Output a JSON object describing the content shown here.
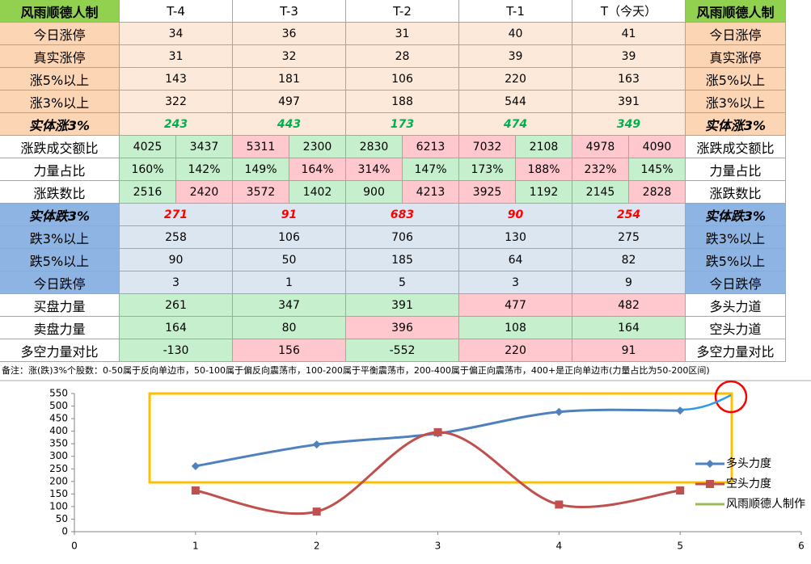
{
  "table": {
    "header": [
      "风雨顺德人制",
      "T-4",
      "T-3",
      "T-2",
      "T-1",
      "T（今天）",
      "风雨顺德人制"
    ],
    "header_fill": "#92d050",
    "rows": [
      {
        "label": "今日涨停",
        "right": "今日涨停",
        "label_fill": "#fcd5b4",
        "fill": "#fde9d9",
        "values": [
          34,
          36,
          31,
          40,
          41
        ]
      },
      {
        "label": "真实涨停",
        "right": "真实涨停",
        "label_fill": "#fcd5b4",
        "fill": "#fde9d9",
        "values": [
          31,
          32,
          28,
          39,
          39
        ]
      },
      {
        "label": "涨5%以上",
        "right": "涨5%以上",
        "label_fill": "#fcd5b4",
        "fill": "#fde9d9",
        "values": [
          143,
          181,
          106,
          220,
          163
        ]
      },
      {
        "label": "涨3%以上",
        "right": "涨3%以上",
        "label_fill": "#fcd5b4",
        "fill": "#fde9d9",
        "values": [
          322,
          497,
          188,
          544,
          391
        ]
      },
      {
        "label": "实体涨3%",
        "right": "实体涨3%",
        "label_fill": "#fcd5b4",
        "fill": "#fde9d9",
        "emphasis": true,
        "color": "#00b050",
        "values": [
          243,
          443,
          173,
          474,
          349
        ]
      },
      {
        "label": "涨跌成交额比",
        "right": "涨跌成交额比",
        "label_fill": "#ffffff",
        "values": [
          [
            4025,
            3437
          ],
          [
            5311,
            2300
          ],
          [
            2830,
            6213
          ],
          [
            7032,
            2108
          ],
          [
            4978,
            4090
          ]
        ],
        "fills": [
          [
            "#c6efce",
            "#c6efce"
          ],
          [
            "#ffc7ce",
            "#c6efce"
          ],
          [
            "#c6efce",
            "#ffc7ce"
          ],
          [
            "#ffc7ce",
            "#c6efce"
          ],
          [
            "#ffc7ce",
            "#ffc7ce"
          ]
        ]
      },
      {
        "label": "力量占比",
        "right": "力量占比",
        "label_fill": "#ffffff",
        "values": [
          [
            "160%",
            "142%"
          ],
          [
            "149%",
            "164%"
          ],
          [
            "314%",
            "147%"
          ],
          [
            "173%",
            "188%"
          ],
          [
            "232%",
            "145%"
          ]
        ],
        "fills": [
          [
            "#c6efce",
            "#c6efce"
          ],
          [
            "#c6efce",
            "#ffc7ce"
          ],
          [
            "#ffc7ce",
            "#c6efce"
          ],
          [
            "#c6efce",
            "#ffc7ce"
          ],
          [
            "#ffc7ce",
            "#c6efce"
          ]
        ]
      },
      {
        "label": "涨跌数比",
        "right": "涨跌数比",
        "label_fill": "#ffffff",
        "values": [
          [
            2516,
            2420
          ],
          [
            3572,
            1402
          ],
          [
            900,
            4213
          ],
          [
            3925,
            1192
          ],
          [
            2145,
            2828
          ]
        ],
        "fills": [
          [
            "#c6efce",
            "#ffc7ce"
          ],
          [
            "#ffc7ce",
            "#c6efce"
          ],
          [
            "#c6efce",
            "#ffc7ce"
          ],
          [
            "#ffc7ce",
            "#c6efce"
          ],
          [
            "#c6efce",
            "#ffc7ce"
          ]
        ]
      },
      {
        "label": "实体跌3%",
        "right": "实体跌3%",
        "label_fill": "#8db4e2",
        "fill": "#dce6f1",
        "emphasis": true,
        "color": "#ff0000",
        "values": [
          271,
          91,
          683,
          90,
          254
        ]
      },
      {
        "label": "跌3%以上",
        "right": "跌3%以上",
        "label_fill": "#8db4e2",
        "fill": "#dce6f1",
        "values": [
          258,
          106,
          706,
          130,
          275
        ]
      },
      {
        "label": "跌5%以上",
        "right": "跌5%以上",
        "label_fill": "#8db4e2",
        "fill": "#dce6f1",
        "values": [
          90,
          50,
          185,
          64,
          82
        ]
      },
      {
        "label": "今日跌停",
        "right": "今日跌停",
        "label_fill": "#8db4e2",
        "fill": "#dce6f1",
        "values": [
          3,
          1,
          5,
          3,
          9
        ]
      },
      {
        "label": "买盘力量",
        "right": "多头力道",
        "label_fill": "#ffffff",
        "values": [
          261,
          347,
          391,
          477,
          482
        ],
        "fills": [
          "#c6efce",
          "#c6efce",
          "#c6efce",
          "#ffc7ce",
          "#ffc7ce"
        ]
      },
      {
        "label": "卖盘力量",
        "right": "空头力道",
        "label_fill": "#ffffff",
        "values": [
          164,
          80,
          396,
          108,
          164
        ],
        "fills": [
          "#c6efce",
          "#c6efce",
          "#ffc7ce",
          "#c6efce",
          "#c6efce"
        ]
      },
      {
        "label": "多空力量对比",
        "right": "多空力量对比",
        "label_fill": "#ffffff",
        "values": [
          -130,
          156,
          -552,
          220,
          91
        ],
        "fills": [
          "#c6efce",
          "#ffc7ce",
          "#c6efce",
          "#ffc7ce",
          "#ffc7ce"
        ]
      }
    ],
    "note": "备注：涨(跌)3%个股数：0-50属于反向单边市，50-100属于偏反向震荡市，100-200属于平衡震荡市，200-400属于偏正向震荡市，400+是正向单边市(力量占比为50-200区间)"
  },
  "chart_data": {
    "type": "line",
    "smooth": true,
    "legend": "right",
    "x": [
      1,
      2,
      3,
      4,
      5
    ],
    "xlim": [
      0,
      6
    ],
    "xticks": [
      0,
      1,
      2,
      3,
      4,
      5,
      6
    ],
    "ylim": [
      0,
      550
    ],
    "yticks": [
      0,
      50,
      100,
      150,
      200,
      250,
      300,
      350,
      400,
      450,
      500,
      550
    ],
    "series": [
      {
        "name": "多头力度",
        "color": "#4f81bd",
        "marker": "diamond",
        "values": [
          261,
          347,
          391,
          477,
          482
        ]
      },
      {
        "name": "空头力度",
        "color": "#c0504d",
        "marker": "square",
        "values": [
          164,
          80,
          396,
          108,
          164
        ]
      },
      {
        "name": "风雨顺德人制作",
        "color": "#9bbb59",
        "values": [
          null,
          null,
          null,
          null,
          null
        ]
      }
    ]
  }
}
